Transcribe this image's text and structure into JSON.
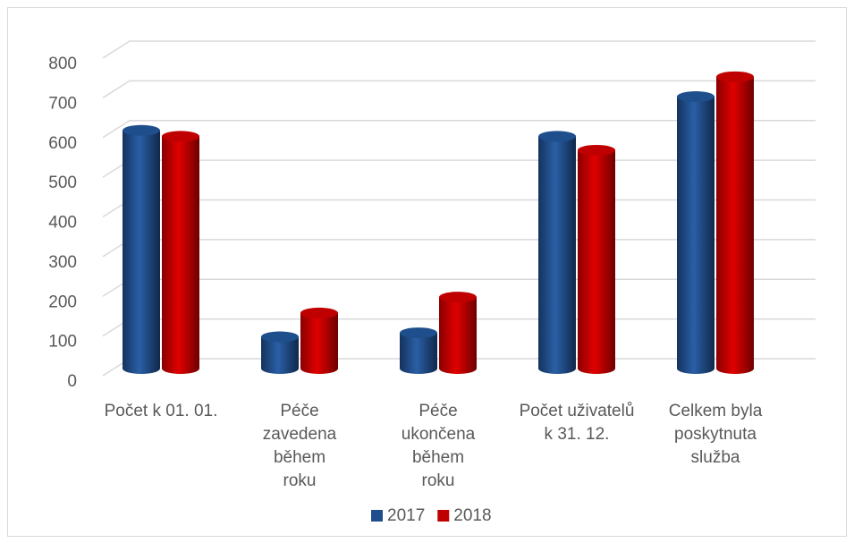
{
  "chart_data": {
    "type": "bar3d",
    "categories": [
      "Počet k 01. 01.",
      "Péče zavedena během roku",
      "Péče ukončena během roku",
      "Počet uživatelů k 31. 12.",
      "Celkem byla poskytnuta služba"
    ],
    "series": [
      {
        "name": "2017",
        "color": "#1f4e8c",
        "values": [
          600,
          80,
          90,
          585,
          685
        ]
      },
      {
        "name": "2018",
        "color": "#c00000",
        "values": [
          585,
          140,
          180,
          550,
          735
        ]
      }
    ],
    "ylim": [
      0,
      800
    ],
    "yticks": [
      0,
      100,
      200,
      300,
      400,
      500,
      600,
      700,
      800
    ],
    "grid": true,
    "legend": "bottom"
  }
}
